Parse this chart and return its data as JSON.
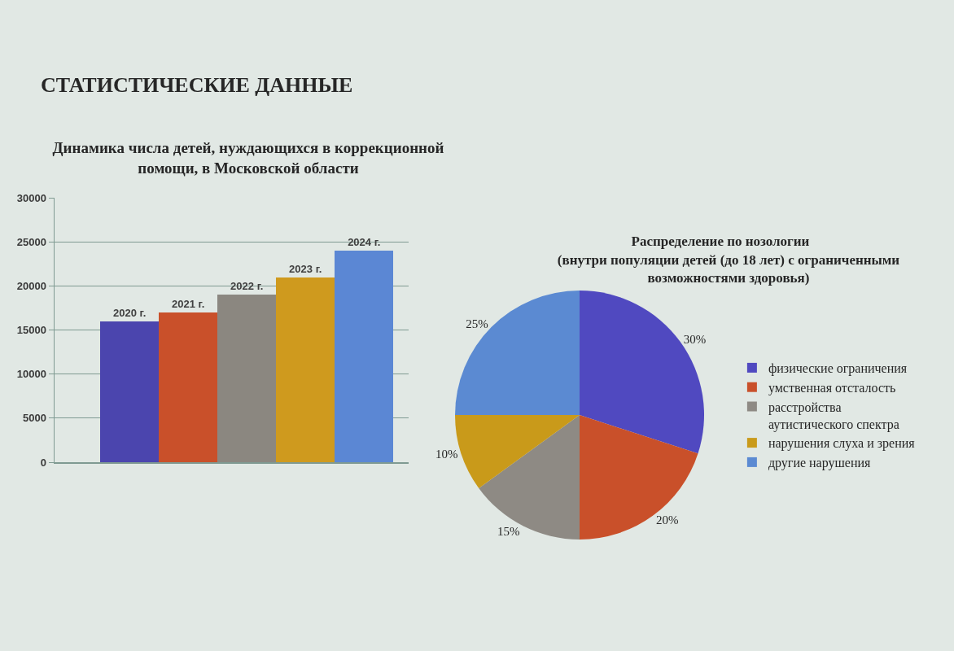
{
  "chart_data": [
    {
      "type": "bar",
      "title": "Динамика числа детей, нуждающихся в коррекционной помощи, в Московской области",
      "annotations": [
        "СТАТИСТИЧЕСКИЕ ДАННЫЕ"
      ],
      "categories": [
        "2020 г.",
        "2021 г.",
        "2022 г.",
        "2023 г.",
        "2024 г."
      ],
      "values": [
        16000,
        17000,
        19000,
        21000,
        24000
      ],
      "colors": [
        "#4b45ae",
        "#c9502a",
        "#8b8780",
        "#cf9a1e",
        "#5b87d4"
      ],
      "ylim": [
        0,
        30000
      ],
      "yticks": [
        0,
        5000,
        10000,
        15000,
        20000,
        25000,
        30000
      ],
      "grid": "y",
      "tick_labels": "y"
    },
    {
      "type": "pie",
      "title": "Распределение по нозологии",
      "subtitle": "(внутри популяции детей (до 18 лет) с ограниченными возможностями здоровья)",
      "categories": [
        "физические ограничения",
        "умственная отсталость",
        "расстройства аутистического спектра",
        "нарушения слуха и зрения",
        "другие нарушения"
      ],
      "values": [
        30,
        20,
        15,
        10,
        25
      ],
      "value_labels": [
        "30%",
        "20%",
        "15%",
        "10%",
        "25%"
      ],
      "colors": [
        "#5049c0",
        "#c9502a",
        "#8e8a84",
        "#c99a1a",
        "#5b8ad2"
      ],
      "legend": "right"
    }
  ]
}
